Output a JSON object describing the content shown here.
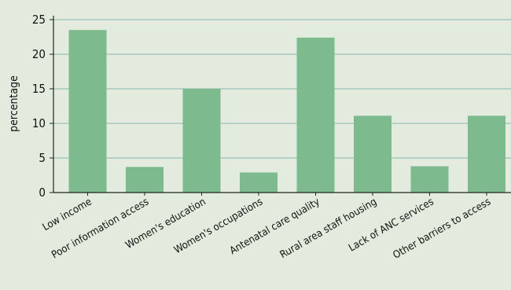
{
  "chart_data": {
    "type": "bar",
    "title": "",
    "xlabel": "",
    "ylabel": "percentage",
    "ylim": [
      0,
      25
    ],
    "yticks": [
      0,
      5,
      10,
      15,
      20,
      25
    ],
    "grid": "horizontal",
    "categories": [
      "Low income",
      "Poor information access",
      "Women's education",
      "Women's occupations",
      "Antenatal care quality",
      "Rural area staff housing",
      "Lack of ANC services",
      "Other barriers to access"
    ],
    "values": [
      23.5,
      3.7,
      15.0,
      2.9,
      22.4,
      11.1,
      3.8,
      11.1
    ],
    "colors": {
      "background": "#e3ebdf",
      "bar": "#7dbb8f",
      "gridline": "#8ab6a8",
      "axis": "#222222"
    }
  }
}
